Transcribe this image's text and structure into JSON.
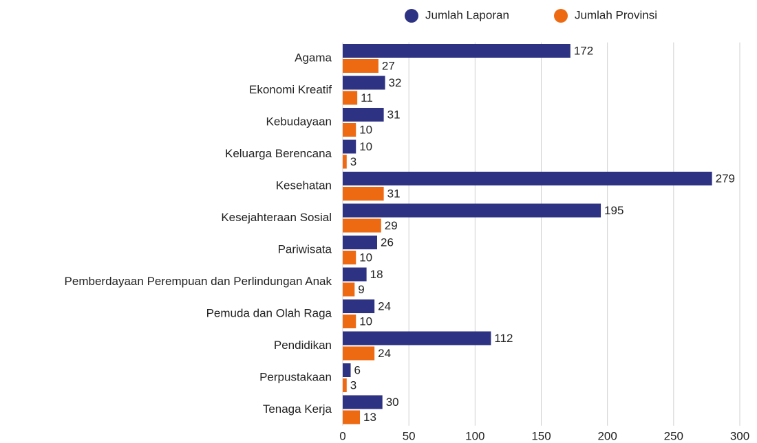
{
  "chart_data": {
    "type": "bar",
    "orientation": "horizontal",
    "categories": [
      "Agama",
      "Ekonomi Kreatif",
      "Kebudayaan",
      "Keluarga Berencana",
      "Kesehatan",
      "Kesejahteraan Sosial",
      "Pariwisata",
      "Pemberdayaan Perempuan dan Perlindungan Anak",
      "Pemuda dan Olah Raga",
      "Pendidikan",
      "Perpustakaan",
      "Tenaga Kerja"
    ],
    "series": [
      {
        "name": "Jumlah Laporan",
        "color": "#2e3282",
        "values": [
          172,
          32,
          31,
          10,
          279,
          195,
          26,
          18,
          24,
          112,
          6,
          30
        ]
      },
      {
        "name": "Jumlah Provinsi",
        "color": "#ee6a12",
        "values": [
          27,
          11,
          10,
          3,
          31,
          29,
          10,
          9,
          10,
          24,
          3,
          13
        ]
      }
    ],
    "xlim": [
      0,
      300
    ],
    "xticks": [
      0,
      50,
      100,
      150,
      200,
      250,
      300
    ],
    "grid": true,
    "legend": "top-right"
  }
}
